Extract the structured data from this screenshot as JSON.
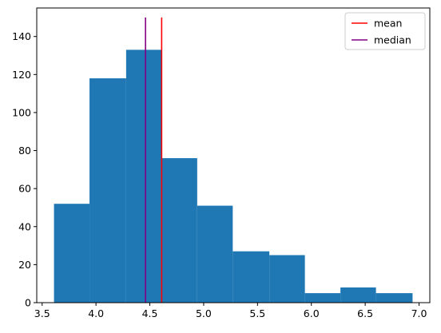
{
  "chart_data": {
    "type": "bar",
    "title": "",
    "xlabel": "",
    "ylabel": "",
    "xlim": [
      3.45,
      7.1
    ],
    "ylim": [
      0,
      155
    ],
    "grid": false,
    "legend_position": "top-right",
    "bar_color": "#1f77b4",
    "bins": [
      {
        "x0": 3.61,
        "x1": 3.94,
        "count": 52
      },
      {
        "x0": 3.94,
        "x1": 4.28,
        "count": 118
      },
      {
        "x0": 4.28,
        "x1": 4.61,
        "count": 133
      },
      {
        "x0": 4.61,
        "x1": 4.94,
        "count": 76
      },
      {
        "x0": 4.94,
        "x1": 5.27,
        "count": 51
      },
      {
        "x0": 5.27,
        "x1": 5.61,
        "count": 27
      },
      {
        "x0": 5.61,
        "x1": 5.94,
        "count": 25
      },
      {
        "x0": 5.94,
        "x1": 6.27,
        "count": 5
      },
      {
        "x0": 6.27,
        "x1": 6.6,
        "count": 8
      },
      {
        "x0": 6.6,
        "x1": 6.94,
        "count": 5
      }
    ],
    "xticks": [
      "3.5",
      "4.0",
      "4.5",
      "5.0",
      "5.5",
      "6.0",
      "6.5",
      "7.0"
    ],
    "yticks": [
      "0",
      "20",
      "40",
      "60",
      "80",
      "100",
      "120",
      "140"
    ],
    "vlines": [
      {
        "name": "mean",
        "x": 4.61,
        "ymin": 0,
        "ymax": 150,
        "color": "#ff0000"
      },
      {
        "name": "median",
        "x": 4.46,
        "ymin": 0,
        "ymax": 150,
        "color": "#800080"
      }
    ]
  }
}
